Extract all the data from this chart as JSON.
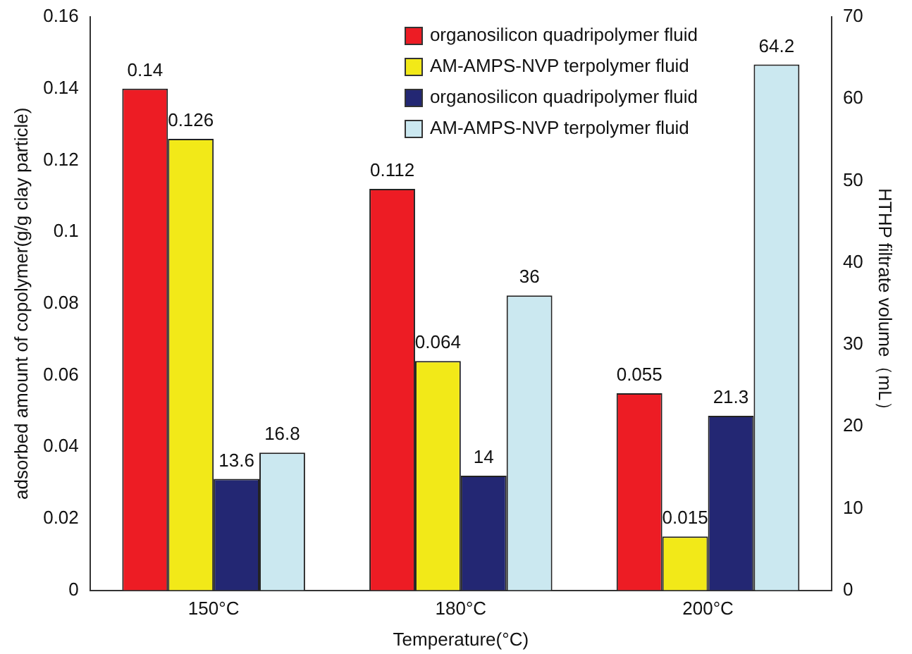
{
  "chart_data": {
    "type": "bar",
    "xlabel": "Temperature(°C)",
    "ylabel": "adsorbed amount of copolymer(g/g clay particle)",
    "y2label": "HTHP filtrate volume（mL）",
    "categories": [
      "150°C",
      "180°C",
      "200°C"
    ],
    "series": [
      {
        "name": "organosilicon quadripolymer fluid",
        "color": "#ed1c24",
        "values": [
          0.14,
          0.112,
          0.055
        ]
      },
      {
        "name": "AM-AMPS-NVP terpolymer fluid",
        "color": "#f2e918",
        "values": [
          0.126,
          0.064,
          0.015
        ]
      },
      {
        "name": "organosilicon quadripolymer fluid",
        "color": "#232773",
        "values": [
          13.6,
          14,
          21.3
        ],
        "axis": "y2"
      },
      {
        "name": "AM-AMPS-NVP terpolymer fluid",
        "color": "#cbe8f0",
        "values": [
          16.8,
          36,
          64.2
        ],
        "axis": "y2"
      }
    ],
    "ylim": [
      0,
      0.16
    ],
    "yticks": [
      0,
      0.02,
      0.04,
      0.06,
      0.08,
      0.1,
      0.12,
      0.14,
      0.16
    ],
    "y2lim": [
      0,
      70
    ],
    "y2ticks": [
      0,
      10,
      20,
      30,
      40,
      50,
      60,
      70
    ],
    "data_labels": true,
    "legend": "top right",
    "grid": false
  }
}
